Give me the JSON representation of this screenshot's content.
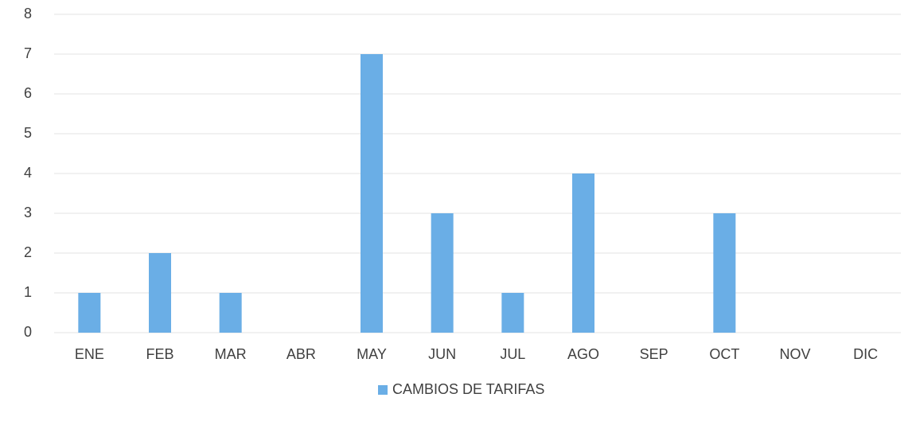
{
  "chart_data": {
    "type": "bar",
    "categories": [
      "ENE",
      "FEB",
      "MAR",
      "ABR",
      "MAY",
      "JUN",
      "JUL",
      "AGO",
      "SEP",
      "OCT",
      "NOV",
      "DIC"
    ],
    "series": [
      {
        "name": "CAMBIOS DE TARIFAS",
        "color": "#6aaee6",
        "values": [
          1,
          2,
          1,
          0,
          7,
          3,
          1,
          4,
          0,
          3,
          0,
          0
        ]
      }
    ],
    "ylim": [
      0,
      8
    ],
    "yticks": [
      0,
      1,
      2,
      3,
      4,
      5,
      6,
      7,
      8
    ],
    "grid": true,
    "legend": "bottom"
  }
}
